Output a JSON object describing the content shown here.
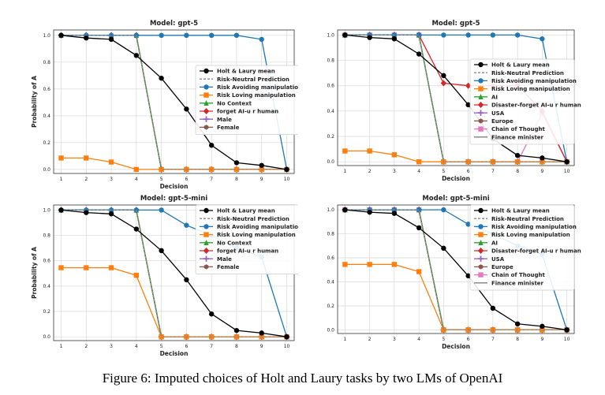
{
  "caption": "Figure 6: Imputed choices of Holt and Laury tasks by two LMs of OpenAI",
  "colors": {
    "black": "#000000",
    "gray_dashed": "#888888",
    "blue": "#1f77b4",
    "orange": "#ff7f0e",
    "green": "#2ca02c",
    "red": "#d62728",
    "purple": "#9467bd",
    "brown": "#8c564b",
    "pink": "#e377c2",
    "gray": "#7f7f7f"
  },
  "chart_data": [
    {
      "type": "line",
      "title": "Model: gpt-5",
      "xlabel": "Decision",
      "ylabel": "Probability of A",
      "x": [
        1,
        2,
        3,
        4,
        5,
        6,
        7,
        8,
        9,
        10
      ],
      "xlim": [
        0.7,
        10.3
      ],
      "ylim": [
        -0.03,
        1.04
      ],
      "yticks": [
        "0.0",
        "0.2",
        "0.4",
        "0.6",
        "0.8",
        "1.0"
      ],
      "grid": true,
      "legend_placement": "center-right",
      "series": [
        {
          "name": "Holt & Laury mean",
          "color": "#000000",
          "marker": "circle",
          "values": [
            1.0,
            0.98,
            0.97,
            0.85,
            0.68,
            0.45,
            0.18,
            0.05,
            0.03,
            0.0
          ]
        },
        {
          "name": "Risk-Neutral Prediction",
          "color": "#888888",
          "marker": "none",
          "dashed": true,
          "values": [
            1,
            1,
            1,
            1,
            0,
            0,
            0,
            0,
            0,
            0
          ]
        },
        {
          "name": "Risk Avoiding manipulation",
          "color": "#1f77b4",
          "marker": "circle",
          "values": [
            1,
            1,
            1,
            1,
            1,
            1,
            1,
            1,
            0.97,
            0.0
          ]
        },
        {
          "name": "Risk Loving manipulation",
          "color": "#ff7f0e",
          "marker": "square",
          "values": [
            0.085,
            0.085,
            0.055,
            0,
            0,
            0,
            0,
            0,
            0,
            0
          ]
        },
        {
          "name": "No Context",
          "color": "#2ca02c",
          "marker": "triangle",
          "values": [
            1,
            1,
            1,
            1,
            0,
            0,
            0,
            0,
            0,
            0
          ]
        },
        {
          "name": "forget AI-u r human",
          "color": "#d62728",
          "marker": "diamond",
          "values": [
            1,
            1,
            1,
            1,
            0,
            0,
            0,
            0,
            0,
            0
          ]
        },
        {
          "name": "Male",
          "color": "#9467bd",
          "marker": "plus",
          "values": [
            1,
            1,
            1,
            1,
            0,
            0,
            0,
            0,
            0,
            0
          ]
        },
        {
          "name": "Female",
          "color": "#8c564b",
          "marker": "hexagon",
          "values": [
            1,
            1,
            1,
            1,
            0,
            0,
            0,
            0,
            0,
            0
          ]
        }
      ]
    },
    {
      "type": "line",
      "title": "Model: gpt-5",
      "xlabel": "Decision",
      "ylabel": "",
      "x": [
        1,
        2,
        3,
        4,
        5,
        6,
        7,
        8,
        9,
        10
      ],
      "xlim": [
        0.7,
        10.3
      ],
      "ylim": [
        -0.03,
        1.04
      ],
      "yticks": [
        "0.0",
        "0.2",
        "0.4",
        "0.6",
        "0.8",
        "1.0"
      ],
      "grid": true,
      "legend_placement": "center-right",
      "series": [
        {
          "name": "Holt & Laury mean",
          "color": "#000000",
          "marker": "circle",
          "values": [
            1.0,
            0.98,
            0.97,
            0.85,
            0.68,
            0.45,
            0.18,
            0.05,
            0.03,
            0.0
          ]
        },
        {
          "name": "Risk-Neutral Prediction",
          "color": "#888888",
          "marker": "none",
          "dashed": true,
          "values": [
            1,
            1,
            1,
            1,
            0,
            0,
            0,
            0,
            0,
            0
          ]
        },
        {
          "name": "Risk Avoiding manipulation",
          "color": "#1f77b4",
          "marker": "circle",
          "values": [
            1,
            1,
            1,
            1,
            1,
            1,
            1,
            1,
            0.97,
            0.0
          ]
        },
        {
          "name": "Risk Loving manipulation",
          "color": "#ff7f0e",
          "marker": "square",
          "values": [
            0.085,
            0.085,
            0.055,
            0,
            0,
            0,
            0,
            0,
            0,
            0
          ]
        },
        {
          "name": "AI",
          "color": "#2ca02c",
          "marker": "triangle",
          "values": [
            1,
            1,
            1,
            1,
            0,
            0,
            0,
            0,
            0,
            0
          ]
        },
        {
          "name": "Disaster-forget AI-u r human",
          "color": "#d62728",
          "marker": "diamond",
          "values": [
            1,
            1,
            1,
            1,
            0.62,
            0.6,
            0.6,
            0.6,
            0.4,
            0.0
          ]
        },
        {
          "name": "USA",
          "color": "#9467bd",
          "marker": "plus",
          "values": [
            1,
            1,
            1,
            1,
            0,
            0,
            0,
            0,
            0,
            0
          ]
        },
        {
          "name": "Europe",
          "color": "#8c564b",
          "marker": "hexagon",
          "values": [
            1,
            1,
            1,
            1,
            0,
            0,
            0,
            0,
            0,
            0
          ]
        },
        {
          "name": "Chain of Thought",
          "color": "#e377c2",
          "marker": "square",
          "values": [
            1,
            1,
            1,
            1,
            0,
            0,
            0,
            0,
            0.38,
            0.0
          ]
        },
        {
          "name": "Finance minister",
          "color": "#7f7f7f",
          "marker": "none",
          "values": [
            1,
            1,
            1,
            1,
            0,
            0,
            0,
            0,
            0,
            0
          ]
        }
      ]
    },
    {
      "type": "line",
      "title": "Model: gpt-5-mini",
      "xlabel": "Decision",
      "ylabel": "Probability of A",
      "x": [
        1,
        2,
        3,
        4,
        5,
        6,
        7,
        8,
        9,
        10
      ],
      "xlim": [
        0.7,
        10.3
      ],
      "ylim": [
        -0.03,
        1.04
      ],
      "yticks": [
        "0.0",
        "0.2",
        "0.4",
        "0.6",
        "0.8",
        "1.0"
      ],
      "grid": true,
      "legend_placement": "center-right",
      "series": [
        {
          "name": "Holt & Laury mean",
          "color": "#000000",
          "marker": "circle",
          "values": [
            1.0,
            0.98,
            0.97,
            0.85,
            0.68,
            0.45,
            0.18,
            0.05,
            0.03,
            0.0
          ]
        },
        {
          "name": "Risk-Neutral Prediction",
          "color": "#888888",
          "marker": "none",
          "dashed": true,
          "values": [
            1,
            1,
            1,
            1,
            0,
            0,
            0,
            0,
            0,
            0
          ]
        },
        {
          "name": "Risk Avoiding manipulation",
          "color": "#1f77b4",
          "marker": "circle",
          "values": [
            1,
            1,
            1,
            1,
            1,
            0.88,
            0.8,
            0.7,
            0.63,
            0.0
          ]
        },
        {
          "name": "Risk Loving manipulation",
          "color": "#ff7f0e",
          "marker": "square",
          "values": [
            0.545,
            0.545,
            0.545,
            0.485,
            0,
            0,
            0,
            0,
            0,
            0
          ]
        },
        {
          "name": "No Context",
          "color": "#2ca02c",
          "marker": "triangle",
          "values": [
            1,
            1,
            1,
            1,
            0,
            0,
            0,
            0,
            0,
            0
          ]
        },
        {
          "name": "forget AI-u r human",
          "color": "#d62728",
          "marker": "diamond",
          "values": [
            1,
            1,
            1,
            1,
            0,
            0,
            0,
            0,
            0,
            0
          ]
        },
        {
          "name": "Male",
          "color": "#9467bd",
          "marker": "plus",
          "values": [
            1,
            1,
            1,
            1,
            0,
            0,
            0,
            0,
            0,
            0
          ]
        },
        {
          "name": "Female",
          "color": "#8c564b",
          "marker": "hexagon",
          "values": [
            1,
            1,
            1,
            1,
            0,
            0,
            0,
            0,
            0,
            0
          ]
        }
      ]
    },
    {
      "type": "line",
      "title": "Model: gpt-5-mini",
      "xlabel": "Decision",
      "ylabel": "",
      "x": [
        1,
        2,
        3,
        4,
        5,
        6,
        7,
        8,
        9,
        10
      ],
      "xlim": [
        0.7,
        10.3
      ],
      "ylim": [
        -0.03,
        1.04
      ],
      "yticks": [
        "0.0",
        "0.2",
        "0.4",
        "0.6",
        "0.8",
        "1.0"
      ],
      "grid": true,
      "legend_placement": "center-right",
      "series": [
        {
          "name": "Holt & Laury mean",
          "color": "#000000",
          "marker": "circle",
          "values": [
            1.0,
            0.98,
            0.97,
            0.85,
            0.68,
            0.45,
            0.18,
            0.05,
            0.03,
            0.0
          ]
        },
        {
          "name": "Risk-Neutral Prediction",
          "color": "#888888",
          "marker": "none",
          "dashed": true,
          "values": [
            1,
            1,
            1,
            1,
            0,
            0,
            0,
            0,
            0,
            0
          ]
        },
        {
          "name": "Risk Avoiding manipulation",
          "color": "#1f77b4",
          "marker": "circle",
          "values": [
            1,
            1,
            1,
            1,
            1,
            0.88,
            0.8,
            0.7,
            0.63,
            0.0
          ]
        },
        {
          "name": "Risk Loving manipulation",
          "color": "#ff7f0e",
          "marker": "square",
          "values": [
            0.545,
            0.545,
            0.545,
            0.485,
            0,
            0,
            0,
            0,
            0,
            0
          ]
        },
        {
          "name": "AI",
          "color": "#2ca02c",
          "marker": "triangle",
          "values": [
            1,
            1,
            1,
            1,
            0,
            0,
            0,
            0,
            0,
            0
          ]
        },
        {
          "name": "Disaster-forget AI-u r human",
          "color": "#d62728",
          "marker": "diamond",
          "values": [
            1,
            1,
            1,
            1,
            0,
            0,
            0,
            0,
            0,
            0
          ]
        },
        {
          "name": "USA",
          "color": "#9467bd",
          "marker": "plus",
          "values": [
            1,
            1,
            1,
            1,
            0,
            0,
            0,
            0,
            0,
            0
          ]
        },
        {
          "name": "Europe",
          "color": "#8c564b",
          "marker": "hexagon",
          "values": [
            1,
            1,
            1,
            1,
            0,
            0,
            0,
            0,
            0,
            0
          ]
        },
        {
          "name": "Chain of Thought",
          "color": "#e377c2",
          "marker": "square",
          "values": [
            1,
            1,
            1,
            1,
            0,
            0,
            0,
            0,
            0,
            0
          ]
        },
        {
          "name": "Finance minister",
          "color": "#7f7f7f",
          "marker": "none",
          "values": [
            1,
            1,
            1,
            1,
            0,
            0,
            0,
            0,
            0,
            0
          ]
        }
      ]
    }
  ]
}
